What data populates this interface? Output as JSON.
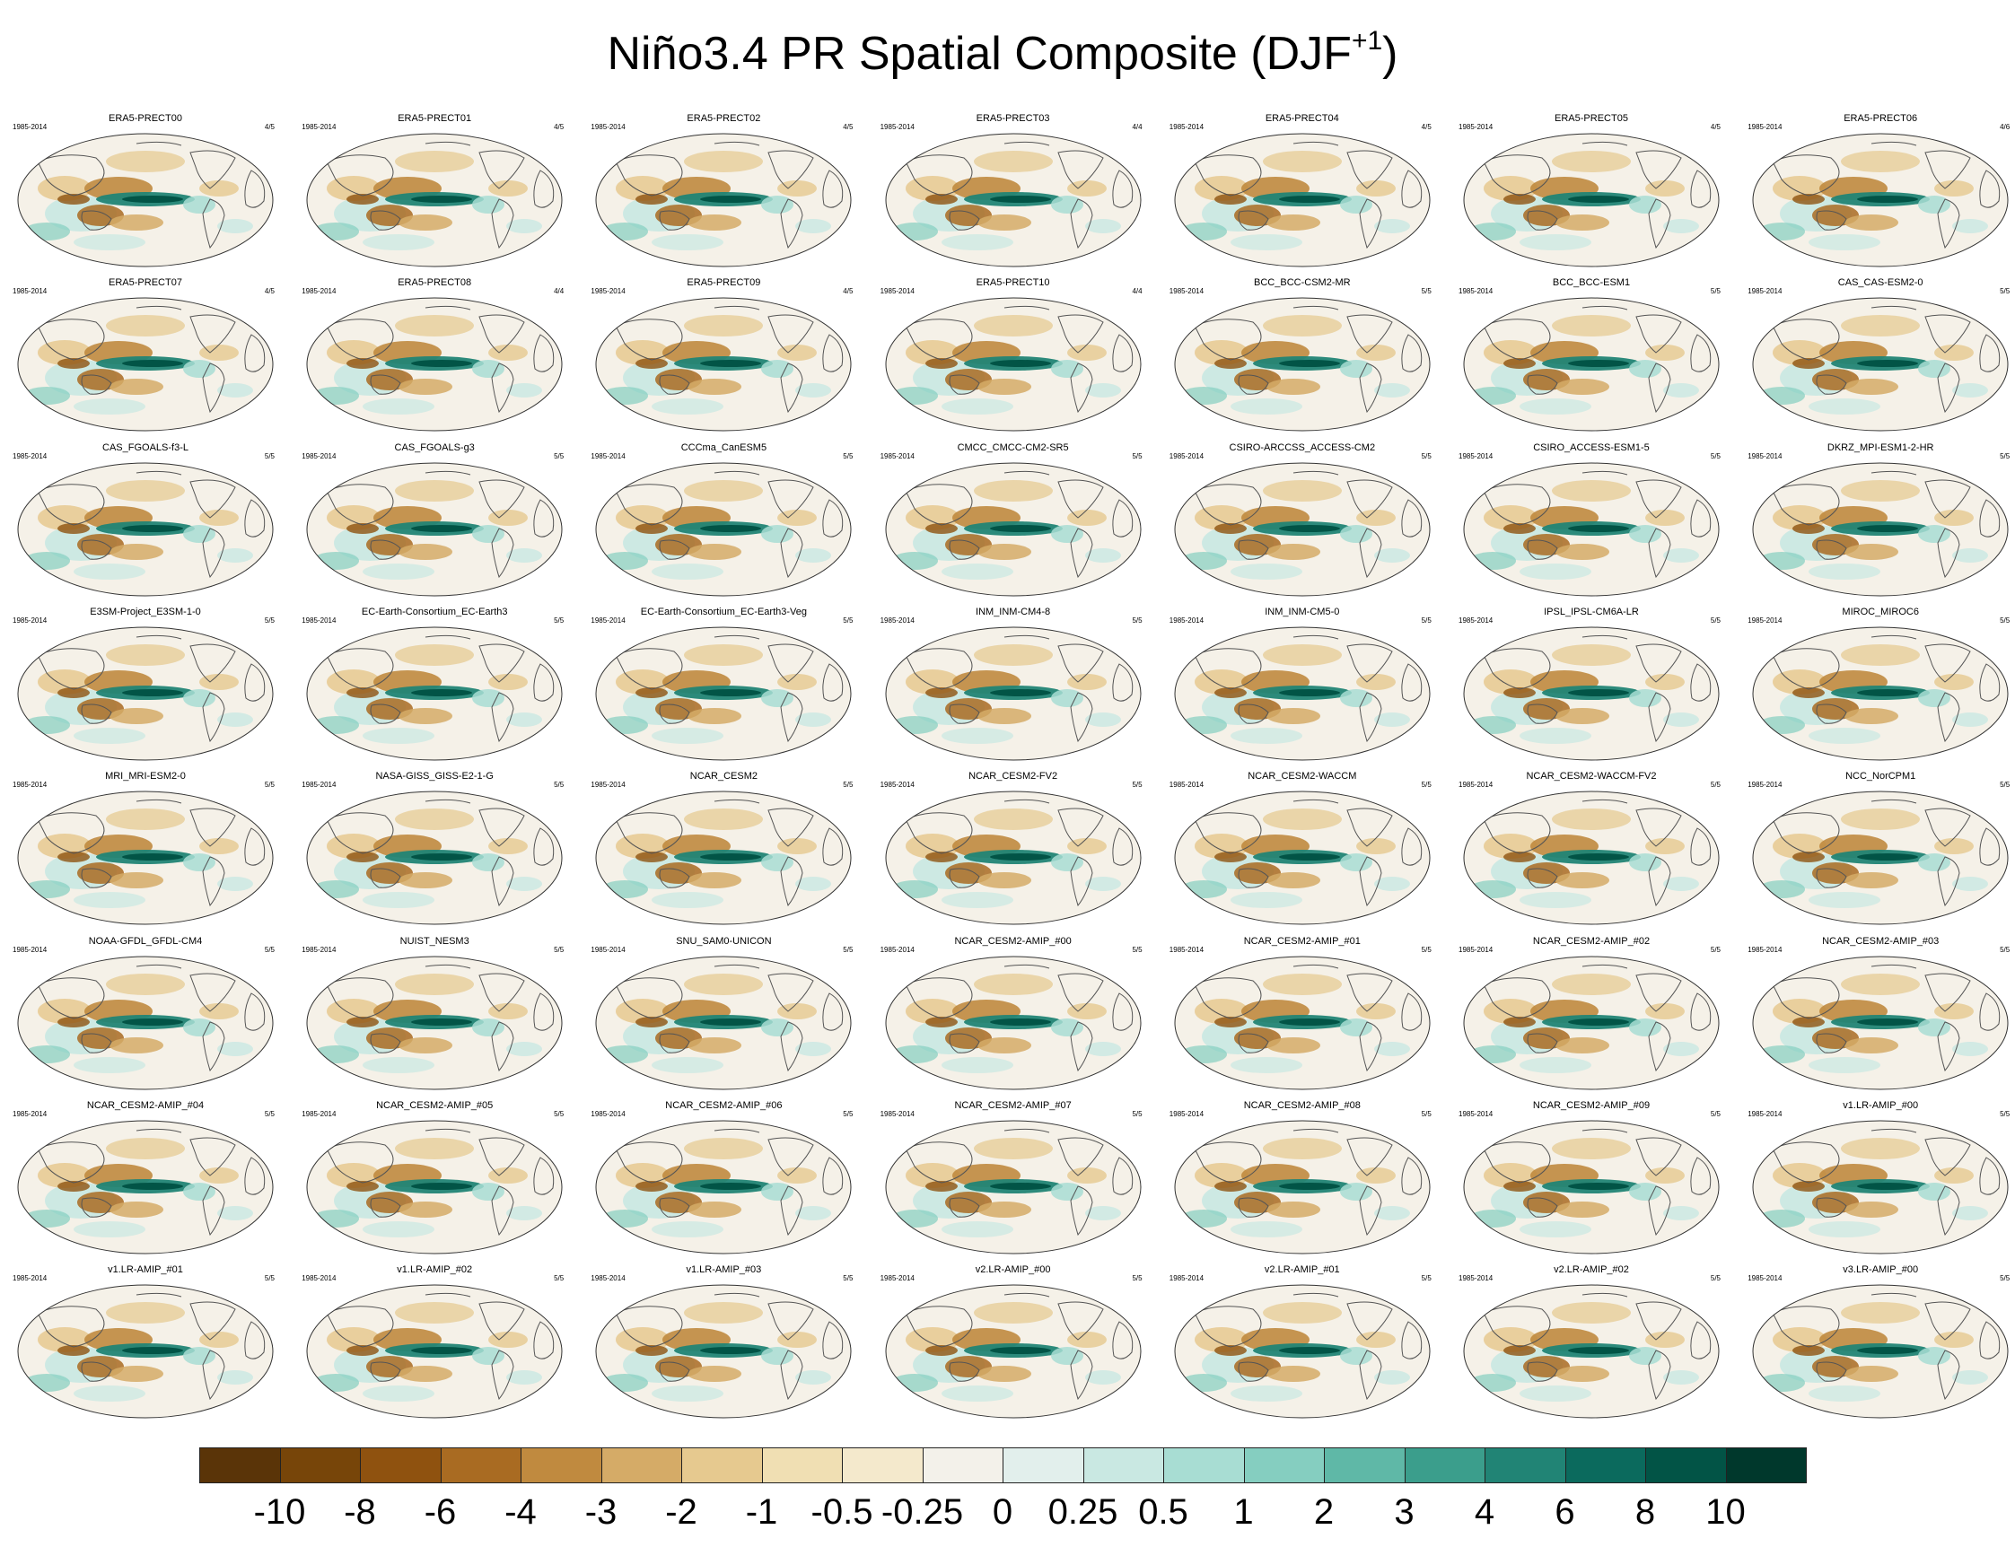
{
  "chart_data": {
    "type": "heatmap",
    "title": "Niño3.4 PR Spatial Composite (DJF",
    "title_superscript": "+1",
    "title_suffix": ")",
    "projection": "global map panels (Robinson-like)",
    "panels": [
      {
        "name": "ERA5-PRECT00",
        "period": "1985-2014",
        "ratio": "4/5"
      },
      {
        "name": "ERA5-PRECT01",
        "period": "1985-2014",
        "ratio": "4/5"
      },
      {
        "name": "ERA5-PRECT02",
        "period": "1985-2014",
        "ratio": "4/5"
      },
      {
        "name": "ERA5-PRECT03",
        "period": "1985-2014",
        "ratio": "4/4"
      },
      {
        "name": "ERA5-PRECT04",
        "period": "1985-2014",
        "ratio": "4/5"
      },
      {
        "name": "ERA5-PRECT05",
        "period": "1985-2014",
        "ratio": "4/5"
      },
      {
        "name": "ERA5-PRECT06",
        "period": "1985-2014",
        "ratio": "4/6"
      },
      {
        "name": "ERA5-PRECT07",
        "period": "1985-2014",
        "ratio": "4/5"
      },
      {
        "name": "ERA5-PRECT08",
        "period": "1985-2014",
        "ratio": "4/4"
      },
      {
        "name": "ERA5-PRECT09",
        "period": "1985-2014",
        "ratio": "4/5"
      },
      {
        "name": "ERA5-PRECT10",
        "period": "1985-2014",
        "ratio": "4/4"
      },
      {
        "name": "BCC_BCC-CSM2-MR",
        "period": "1985-2014",
        "ratio": "5/5"
      },
      {
        "name": "BCC_BCC-ESM1",
        "period": "1985-2014",
        "ratio": "5/5"
      },
      {
        "name": "CAS_CAS-ESM2-0",
        "period": "1985-2014",
        "ratio": "5/5"
      },
      {
        "name": "CAS_FGOALS-f3-L",
        "period": "1985-2014",
        "ratio": "5/5"
      },
      {
        "name": "CAS_FGOALS-g3",
        "period": "1985-2014",
        "ratio": "5/5"
      },
      {
        "name": "CCCma_CanESM5",
        "period": "1985-2014",
        "ratio": "5/5"
      },
      {
        "name": "CMCC_CMCC-CM2-SR5",
        "period": "1985-2014",
        "ratio": "5/5"
      },
      {
        "name": "CSIRO-ARCCSS_ACCESS-CM2",
        "period": "1985-2014",
        "ratio": "5/5"
      },
      {
        "name": "CSIRO_ACCESS-ESM1-5",
        "period": "1985-2014",
        "ratio": "5/5"
      },
      {
        "name": "DKRZ_MPI-ESM1-2-HR",
        "period": "1985-2014",
        "ratio": "5/5"
      },
      {
        "name": "E3SM-Project_E3SM-1-0",
        "period": "1985-2014",
        "ratio": "5/5"
      },
      {
        "name": "EC-Earth-Consortium_EC-Earth3",
        "period": "1985-2014",
        "ratio": "5/5"
      },
      {
        "name": "EC-Earth-Consortium_EC-Earth3-Veg",
        "period": "1985-2014",
        "ratio": "5/5"
      },
      {
        "name": "INM_INM-CM4-8",
        "period": "1985-2014",
        "ratio": "5/5"
      },
      {
        "name": "INM_INM-CM5-0",
        "period": "1985-2014",
        "ratio": "5/5"
      },
      {
        "name": "IPSL_IPSL-CM6A-LR",
        "period": "1985-2014",
        "ratio": "5/5"
      },
      {
        "name": "MIROC_MIROC6",
        "period": "1985-2014",
        "ratio": "5/5"
      },
      {
        "name": "MRI_MRI-ESM2-0",
        "period": "1985-2014",
        "ratio": "5/5"
      },
      {
        "name": "NASA-GISS_GISS-E2-1-G",
        "period": "1985-2014",
        "ratio": "5/5"
      },
      {
        "name": "NCAR_CESM2",
        "period": "1985-2014",
        "ratio": "5/5"
      },
      {
        "name": "NCAR_CESM2-FV2",
        "period": "1985-2014",
        "ratio": "5/5"
      },
      {
        "name": "NCAR_CESM2-WACCM",
        "period": "1985-2014",
        "ratio": "5/5"
      },
      {
        "name": "NCAR_CESM2-WACCM-FV2",
        "period": "1985-2014",
        "ratio": "5/5"
      },
      {
        "name": "NCC_NorCPM1",
        "period": "1985-2014",
        "ratio": "5/5"
      },
      {
        "name": "NOAA-GFDL_GFDL-CM4",
        "period": "1985-2014",
        "ratio": "5/5"
      },
      {
        "name": "NUIST_NESM3",
        "period": "1985-2014",
        "ratio": "5/5"
      },
      {
        "name": "SNU_SAM0-UNICON",
        "period": "1985-2014",
        "ratio": "5/5"
      },
      {
        "name": "NCAR_CESM2-AMIP_#00",
        "period": "1985-2014",
        "ratio": "5/5"
      },
      {
        "name": "NCAR_CESM2-AMIP_#01",
        "period": "1985-2014",
        "ratio": "5/5"
      },
      {
        "name": "NCAR_CESM2-AMIP_#02",
        "period": "1985-2014",
        "ratio": "5/5"
      },
      {
        "name": "NCAR_CESM2-AMIP_#03",
        "period": "1985-2014",
        "ratio": "5/5"
      },
      {
        "name": "NCAR_CESM2-AMIP_#04",
        "period": "1985-2014",
        "ratio": "5/5"
      },
      {
        "name": "NCAR_CESM2-AMIP_#05",
        "period": "1985-2014",
        "ratio": "5/5"
      },
      {
        "name": "NCAR_CESM2-AMIP_#06",
        "period": "1985-2014",
        "ratio": "5/5"
      },
      {
        "name": "NCAR_CESM2-AMIP_#07",
        "period": "1985-2014",
        "ratio": "5/5"
      },
      {
        "name": "NCAR_CESM2-AMIP_#08",
        "period": "1985-2014",
        "ratio": "5/5"
      },
      {
        "name": "NCAR_CESM2-AMIP_#09",
        "period": "1985-2014",
        "ratio": "5/5"
      },
      {
        "name": "v1.LR-AMIP_#00",
        "period": "1985-2014",
        "ratio": "5/5"
      },
      {
        "name": "v1.LR-AMIP_#01",
        "period": "1985-2014",
        "ratio": "5/5"
      },
      {
        "name": "v1.LR-AMIP_#02",
        "period": "1985-2014",
        "ratio": "5/5"
      },
      {
        "name": "v1.LR-AMIP_#03",
        "period": "1985-2014",
        "ratio": "5/5"
      },
      {
        "name": "v2.LR-AMIP_#00",
        "period": "1985-2014",
        "ratio": "5/5"
      },
      {
        "name": "v2.LR-AMIP_#01",
        "period": "1985-2014",
        "ratio": "5/5"
      },
      {
        "name": "v2.LR-AMIP_#02",
        "period": "1985-2014",
        "ratio": "5/5"
      },
      {
        "name": "v3.LR-AMIP_#00",
        "period": "1985-2014",
        "ratio": "5/5"
      }
    ],
    "colorbar": {
      "levels": [
        "-10",
        "-8",
        "-6",
        "-4",
        "-3",
        "-2",
        "-1",
        "-0.5",
        "-0.25",
        "0",
        "0.25",
        "0.5",
        "1",
        "2",
        "3",
        "4",
        "6",
        "8",
        "10"
      ],
      "colors": [
        "#5a3408",
        "#774509",
        "#8f520f",
        "#a96b22",
        "#c08a3f",
        "#d5ab67",
        "#e6c98f",
        "#f0dfb3",
        "#f4e9cc",
        "#f3f1ea",
        "#e2efec",
        "#c9e8e2",
        "#a8ddd3",
        "#85cec0",
        "#5fb8a7",
        "#3b9e8c",
        "#218475",
        "#0b6a5d",
        "#025446",
        "#00382c"
      ]
    }
  }
}
